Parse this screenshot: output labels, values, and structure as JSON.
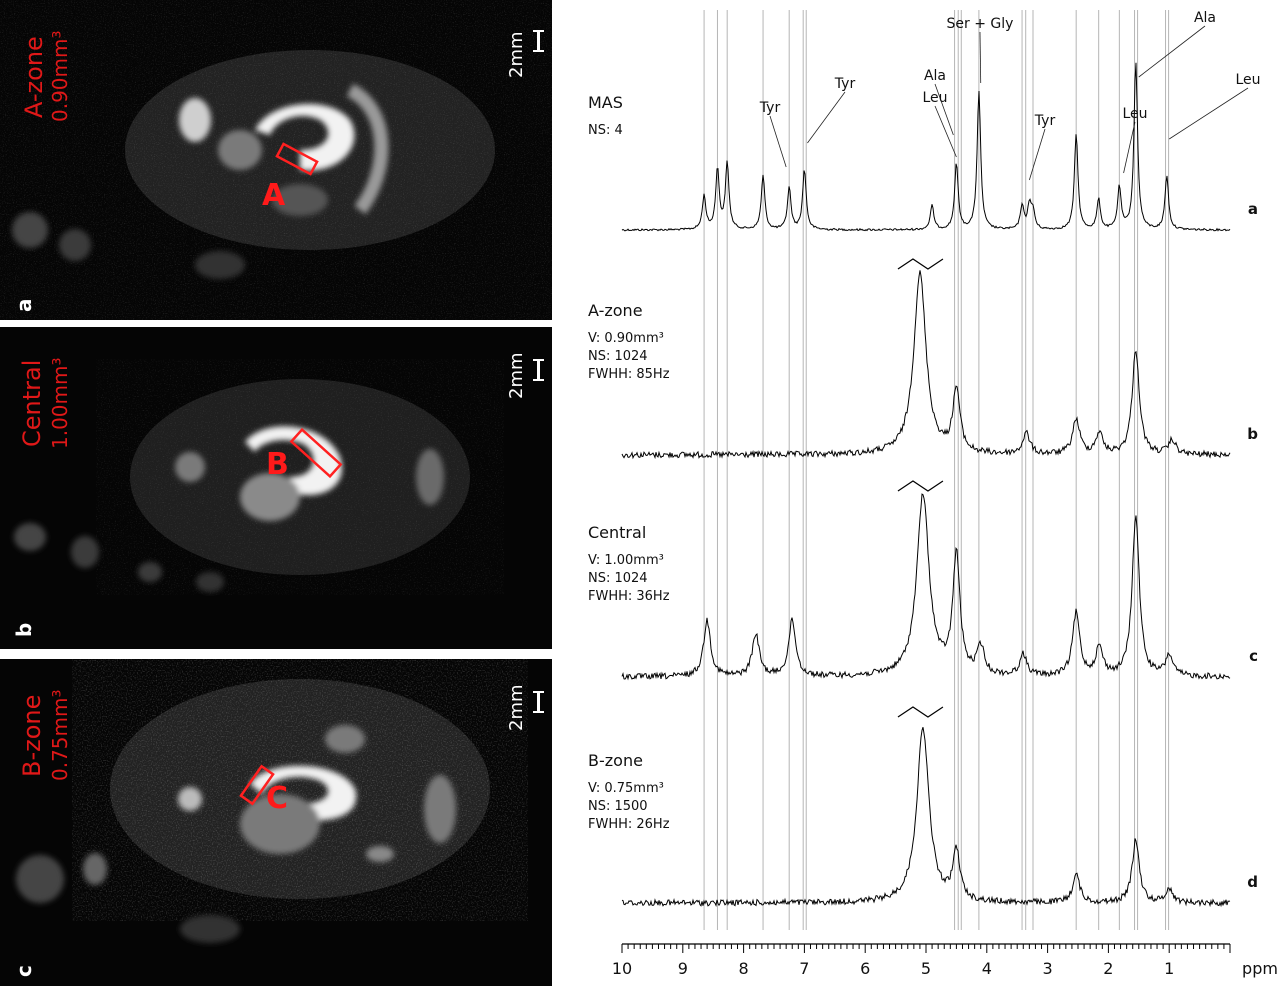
{
  "panels": [
    {
      "letter": "a",
      "zone": "A-zone",
      "volume": "0.90mm³",
      "roi_letter": "A",
      "scale": "2mm"
    },
    {
      "letter": "b",
      "zone": "Central",
      "volume": "1.00mm³",
      "roi_letter": "B",
      "scale": "2mm"
    },
    {
      "letter": "c",
      "zone": "B-zone",
      "volume": "0.75mm³",
      "roi_letter": "C",
      "scale": "2mm"
    }
  ],
  "spectra": [
    {
      "letter": "a",
      "title": "MAS",
      "info": [
        "NS: 4"
      ]
    },
    {
      "letter": "b",
      "title": "A-zone",
      "info": [
        "V: 0.90mm³",
        "NS: 1024",
        "FWHH: 85Hz"
      ]
    },
    {
      "letter": "c",
      "title": "Central",
      "info": [
        "V: 1.00mm³",
        "NS: 1024",
        "FWHH: 36Hz"
      ]
    },
    {
      "letter": "d",
      "title": "B-zone",
      "info": [
        "V: 0.75mm³",
        "NS: 1500",
        "FWHH: 26Hz"
      ]
    }
  ],
  "peak_labels": [
    {
      "text": "Tyr",
      "ppm": 7.3
    },
    {
      "text": "Tyr",
      "ppm": 6.95
    },
    {
      "text": "Ala",
      "ppm": 4.55
    },
    {
      "text": "Leu",
      "ppm": 4.5
    },
    {
      "text": "Ser + Gly",
      "ppm": 4.1
    },
    {
      "text": "Tyr",
      "ppm": 3.3
    },
    {
      "text": "Leu",
      "ppm": 1.75
    },
    {
      "text": "Ala",
      "ppm": 1.5
    },
    {
      "text": "Leu",
      "ppm": 1.0
    }
  ],
  "reference_lines_ppm": [
    8.65,
    8.43,
    8.27,
    7.68,
    7.25,
    7.02,
    6.97,
    4.53,
    4.47,
    4.42,
    4.13,
    3.42,
    3.36,
    3.24,
    2.53,
    2.16,
    1.82,
    1.57,
    1.52,
    1.06,
    1.01
  ],
  "axis": {
    "ticks": [
      "10",
      "9",
      "8",
      "7",
      "6",
      "5",
      "4",
      "3",
      "2",
      "1"
    ],
    "unit": "ppm",
    "range_ppm": [
      10,
      0
    ]
  },
  "chart_data": {
    "type": "line",
    "xlabel": "ppm",
    "xlim": [
      10,
      0
    ],
    "series": [
      {
        "name": "a",
        "peaks": [
          [
            8.65,
            0.28
          ],
          [
            8.43,
            0.5
          ],
          [
            8.27,
            0.55
          ],
          [
            7.68,
            0.45
          ],
          [
            7.25,
            0.35
          ],
          [
            7.0,
            0.5
          ],
          [
            4.9,
            0.2
          ],
          [
            4.5,
            0.55
          ],
          [
            4.13,
            1.15
          ],
          [
            3.42,
            0.2
          ],
          [
            3.3,
            0.2
          ],
          [
            3.24,
            0.15
          ],
          [
            2.53,
            0.8
          ],
          [
            2.16,
            0.25
          ],
          [
            1.82,
            0.35
          ],
          [
            1.55,
            1.4
          ],
          [
            1.04,
            0.45
          ]
        ]
      },
      {
        "name": "b",
        "peaks": [
          [
            5.1,
            1.3
          ],
          [
            4.5,
            0.45
          ],
          [
            3.35,
            0.15
          ],
          [
            2.53,
            0.25
          ],
          [
            2.15,
            0.15
          ],
          [
            1.55,
            0.75
          ],
          [
            0.95,
            0.1
          ]
        ]
      },
      {
        "name": "c",
        "peaks": [
          [
            8.6,
            0.4
          ],
          [
            7.8,
            0.3
          ],
          [
            7.2,
            0.4
          ],
          [
            5.05,
            1.3
          ],
          [
            4.5,
            0.85
          ],
          [
            4.1,
            0.2
          ],
          [
            3.4,
            0.15
          ],
          [
            2.53,
            0.45
          ],
          [
            2.15,
            0.2
          ],
          [
            1.55,
            1.15
          ],
          [
            1.0,
            0.15
          ]
        ]
      },
      {
        "name": "d",
        "peaks": [
          [
            5.05,
            1.25
          ],
          [
            4.5,
            0.35
          ],
          [
            2.53,
            0.2
          ],
          [
            1.55,
            0.45
          ],
          [
            1.0,
            0.1
          ]
        ]
      }
    ]
  }
}
